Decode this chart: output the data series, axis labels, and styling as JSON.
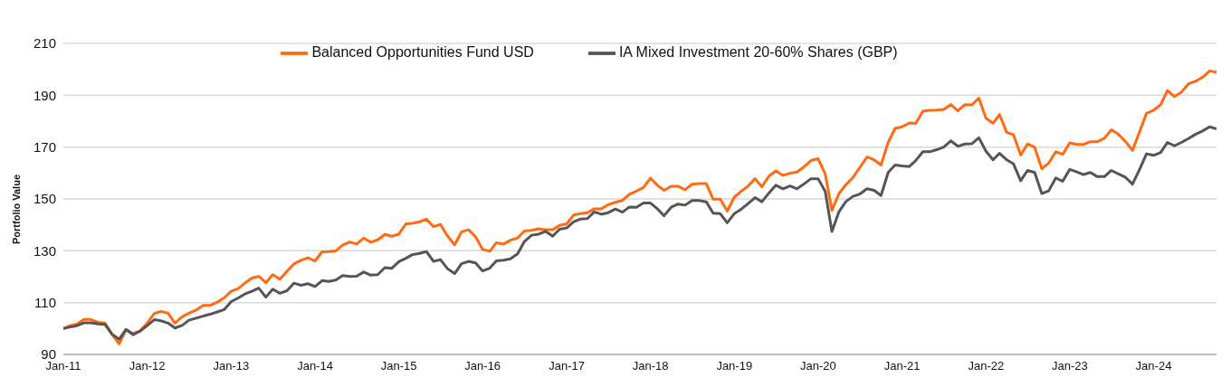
{
  "chart_data": {
    "type": "line",
    "ylabel": "Portfolio Value",
    "x": [
      "2011-01",
      "2011-02",
      "2011-03",
      "2011-04",
      "2011-05",
      "2011-06",
      "2011-07",
      "2011-08",
      "2011-09",
      "2011-10",
      "2011-11",
      "2011-12",
      "2012-01",
      "2012-02",
      "2012-03",
      "2012-04",
      "2012-05",
      "2012-06",
      "2012-07",
      "2012-08",
      "2012-09",
      "2012-10",
      "2012-11",
      "2012-12",
      "2013-01",
      "2013-02",
      "2013-03",
      "2013-04",
      "2013-05",
      "2013-06",
      "2013-07",
      "2013-08",
      "2013-09",
      "2013-10",
      "2013-11",
      "2013-12",
      "2014-01",
      "2014-02",
      "2014-03",
      "2014-04",
      "2014-05",
      "2014-06",
      "2014-07",
      "2014-08",
      "2014-09",
      "2014-10",
      "2014-11",
      "2014-12",
      "2015-01",
      "2015-02",
      "2015-03",
      "2015-04",
      "2015-05",
      "2015-06",
      "2015-07",
      "2015-08",
      "2015-09",
      "2015-10",
      "2015-11",
      "2015-12",
      "2016-01",
      "2016-02",
      "2016-03",
      "2016-04",
      "2016-05",
      "2016-06",
      "2016-07",
      "2016-08",
      "2016-09",
      "2016-10",
      "2016-11",
      "2016-12",
      "2017-01",
      "2017-02",
      "2017-03",
      "2017-04",
      "2017-05",
      "2017-06",
      "2017-07",
      "2017-08",
      "2017-09",
      "2017-10",
      "2017-11",
      "2017-12",
      "2018-01",
      "2018-02",
      "2018-03",
      "2018-04",
      "2018-05",
      "2018-06",
      "2018-07",
      "2018-08",
      "2018-09",
      "2018-10",
      "2018-11",
      "2018-12",
      "2019-01",
      "2019-02",
      "2019-03",
      "2019-04",
      "2019-05",
      "2019-06",
      "2019-07",
      "2019-08",
      "2019-09",
      "2019-10",
      "2019-11",
      "2019-12",
      "2020-01",
      "2020-02",
      "2020-03",
      "2020-04",
      "2020-05",
      "2020-06",
      "2020-07",
      "2020-08",
      "2020-09",
      "2020-10",
      "2020-11",
      "2020-12",
      "2021-01",
      "2021-02",
      "2021-03",
      "2021-04",
      "2021-05",
      "2021-06",
      "2021-07",
      "2021-08",
      "2021-09",
      "2021-10",
      "2021-11",
      "2021-12",
      "2022-01",
      "2022-02",
      "2022-03",
      "2022-04",
      "2022-05",
      "2022-06",
      "2022-07",
      "2022-08",
      "2022-09",
      "2022-10",
      "2022-11",
      "2022-12",
      "2023-01",
      "2023-02",
      "2023-03",
      "2023-04",
      "2023-05",
      "2023-06",
      "2023-07",
      "2023-08",
      "2023-09",
      "2023-10",
      "2023-11",
      "2023-12",
      "2024-01",
      "2024-02",
      "2024-03",
      "2024-04",
      "2024-05",
      "2024-06",
      "2024-07",
      "2024-08",
      "2024-09",
      "2024-10"
    ],
    "series": [
      {
        "name": "Balanced Opportunities Fund USD",
        "color": "#ff6a13",
        "values": [
          100,
          101.2,
          101.7,
          103.5,
          103.5,
          102.4,
          102.1,
          97.8,
          94.1,
          99.6,
          98.1,
          99,
          102.1,
          105.8,
          106.6,
          105.9,
          102.1,
          104.5,
          105.9,
          107.1,
          108.9,
          108.9,
          110.2,
          111.8,
          114.4,
          115.4,
          117.5,
          119.5,
          120.1,
          117.7,
          120.8,
          119,
          122.1,
          124.9,
          126.3,
          127.3,
          126.1,
          129.6,
          129.7,
          129.9,
          132.2,
          133.4,
          132.6,
          134.9,
          133.3,
          134.2,
          136.3,
          135.6,
          136.4,
          140.4,
          140.6,
          141.2,
          142.2,
          139.3,
          140.2,
          135.7,
          132.3,
          137.3,
          138.1,
          135.4,
          130.5,
          129.8,
          133.1,
          132.6,
          134.1,
          134.9,
          137.6,
          137.9,
          138.5,
          138.1,
          138.1,
          139.8,
          140.4,
          143.8,
          144.3,
          144.7,
          146.2,
          146.2,
          147.8,
          148.7,
          149.4,
          151.8,
          153,
          154.4,
          158,
          155.2,
          153.3,
          154.9,
          154.9,
          153.5,
          155.7,
          155.9,
          155.9,
          149.9,
          149.9,
          145.3,
          150.7,
          153,
          154.9,
          157.8,
          154.7,
          158.8,
          160.8,
          159.1,
          159.9,
          160.4,
          162.4,
          164.8,
          165.5,
          159.6,
          145.6,
          152.1,
          155.5,
          158.3,
          162.2,
          166.2,
          165.1,
          163.1,
          171.8,
          177.2,
          177.8,
          179.3,
          179.1,
          183.8,
          184.2,
          184.3,
          184.5,
          186.4,
          184,
          186.4,
          186.3,
          188.9,
          181.1,
          179.2,
          182.6,
          175.7,
          174.7,
          166.9,
          171.2,
          169.9,
          161.7,
          163.8,
          168.2,
          167.2,
          171.6,
          171,
          171,
          172.1,
          172.1,
          173.4,
          176.7,
          174.9,
          172.1,
          168.7,
          175.9,
          183,
          184.2,
          186.4,
          191.8,
          189.5,
          191.2,
          194.4,
          195.4,
          196.9,
          199.4,
          198.8
        ]
      },
      {
        "name": "IA Mixed Investment 20-60% Shares (GBP)",
        "color": "#555555",
        "values": [
          100,
          100.6,
          101.1,
          102.2,
          102.2,
          101.8,
          101.6,
          97.8,
          95.9,
          99.6,
          97.6,
          99,
          101.1,
          103.4,
          103,
          102.1,
          100.2,
          101.2,
          103.2,
          104,
          104.8,
          105.5,
          106.4,
          107.3,
          110.4,
          111.8,
          113.3,
          114.4,
          115.6,
          112.1,
          115.2,
          113.6,
          114.6,
          117.5,
          116.7,
          117.3,
          116.2,
          118.5,
          118.2,
          118.7,
          120.4,
          120.1,
          120.2,
          121.8,
          120.6,
          120.8,
          123.5,
          123.2,
          125.8,
          127.1,
          128.5,
          129,
          129.7,
          125.9,
          126.6,
          123.1,
          121.2,
          125,
          125.9,
          125.3,
          122.2,
          123.3,
          126.1,
          126.4,
          126.9,
          128.8,
          133.6,
          136,
          136.4,
          137.5,
          135.6,
          138.3,
          138.8,
          141.2,
          142.2,
          142.4,
          145,
          144.1,
          144.7,
          146.1,
          144.9,
          146.9,
          146.8,
          148.4,
          148.4,
          146.1,
          143.5,
          146.8,
          148,
          147.6,
          149.4,
          149.4,
          148.9,
          144.5,
          144.3,
          140.8,
          144.3,
          146.1,
          148.1,
          150.5,
          148.9,
          152.3,
          155.3,
          153.9,
          155,
          153.9,
          155.8,
          157.8,
          157.8,
          152.9,
          137.4,
          145.1,
          149,
          151,
          151.9,
          153.9,
          153.3,
          151.3,
          160.2,
          163.1,
          162.7,
          162.5,
          164.8,
          168.2,
          168.2,
          169,
          170,
          172.4,
          170.3,
          171.2,
          171.3,
          173.6,
          168.4,
          165.1,
          167.6,
          165.1,
          163.5,
          157,
          161,
          160.2,
          152.1,
          153.1,
          158.1,
          156.8,
          161.4,
          160.4,
          159.4,
          160.2,
          158.6,
          158.6,
          161,
          159.6,
          158.3,
          155.7,
          161.4,
          167.4,
          166.8,
          167.9,
          171.8,
          170.5,
          171.8,
          173.3,
          174.9,
          176.2,
          177.8,
          177
        ]
      }
    ],
    "xlim": [
      "2011-01",
      "2024-10"
    ],
    "xticks": [
      {
        "value": "2011-01",
        "label": "Jan-11"
      },
      {
        "value": "2012-01",
        "label": "Jan-12"
      },
      {
        "value": "2013-01",
        "label": "Jan-13"
      },
      {
        "value": "2014-01",
        "label": "Jan-14"
      },
      {
        "value": "2015-01",
        "label": "Jan-15"
      },
      {
        "value": "2016-01",
        "label": "Jan-16"
      },
      {
        "value": "2017-01",
        "label": "Jan-17"
      },
      {
        "value": "2018-01",
        "label": "Jan-18"
      },
      {
        "value": "2019-01",
        "label": "Jan-19"
      },
      {
        "value": "2020-01",
        "label": "Jan-20"
      },
      {
        "value": "2021-01",
        "label": "Jan-21"
      },
      {
        "value": "2022-01",
        "label": "Jan-22"
      },
      {
        "value": "2023-01",
        "label": "Jan-23"
      },
      {
        "value": "2024-01",
        "label": "Jan-24"
      }
    ],
    "ylim": [
      90,
      210
    ],
    "yticks": [
      90,
      110,
      130,
      150,
      170,
      190,
      210
    ],
    "grid": "y",
    "legend": "top",
    "marker": "none",
    "line_style": "solid"
  }
}
